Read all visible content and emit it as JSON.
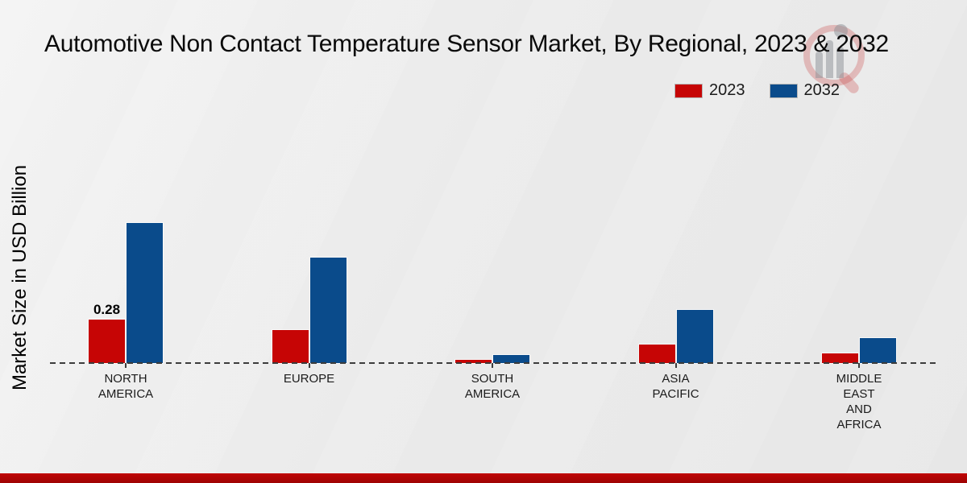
{
  "title": "Automotive Non Contact Temperature Sensor Market, By Regional, 2023 & 2032",
  "y_axis_label": "Market Size in USD Billion",
  "legend": [
    {
      "label": "2023",
      "color": "#c60505"
    },
    {
      "label": "2032",
      "color": "#0a4b8b"
    }
  ],
  "colors": {
    "bar_2023": "#c60505",
    "bar_2032": "#0a4b8b",
    "background": "#ebebeb",
    "footer_band": "#b30404",
    "axis_line": "#3c3c3c",
    "watermark_red": "rgba(201,74,74,0.30)"
  },
  "chart_data": {
    "type": "bar",
    "categories": [
      "NORTH AMERICA",
      "EUROPE",
      "SOUTH AMERICA",
      "ASIA PACIFIC",
      "MIDDLE EAST AND AFRICA"
    ],
    "series": [
      {
        "name": "2023",
        "color": "#c60505",
        "values": [
          0.28,
          0.21,
          0.02,
          0.12,
          0.06
        ]
      },
      {
        "name": "2032",
        "color": "#0a4b8b",
        "values": [
          0.9,
          0.68,
          0.05,
          0.34,
          0.16
        ]
      }
    ],
    "annotations": [
      {
        "series": "2023",
        "category": "NORTH AMERICA",
        "text": "0.28"
      }
    ],
    "title": "Automotive Non Contact Temperature Sensor Market, By Regional, 2023 & 2032",
    "xlabel": "",
    "ylabel": "Market Size in USD Billion",
    "ylim": [
      0,
      1.0
    ],
    "grid": false,
    "baseline_style": "dashed",
    "legend_position": "top-right"
  }
}
